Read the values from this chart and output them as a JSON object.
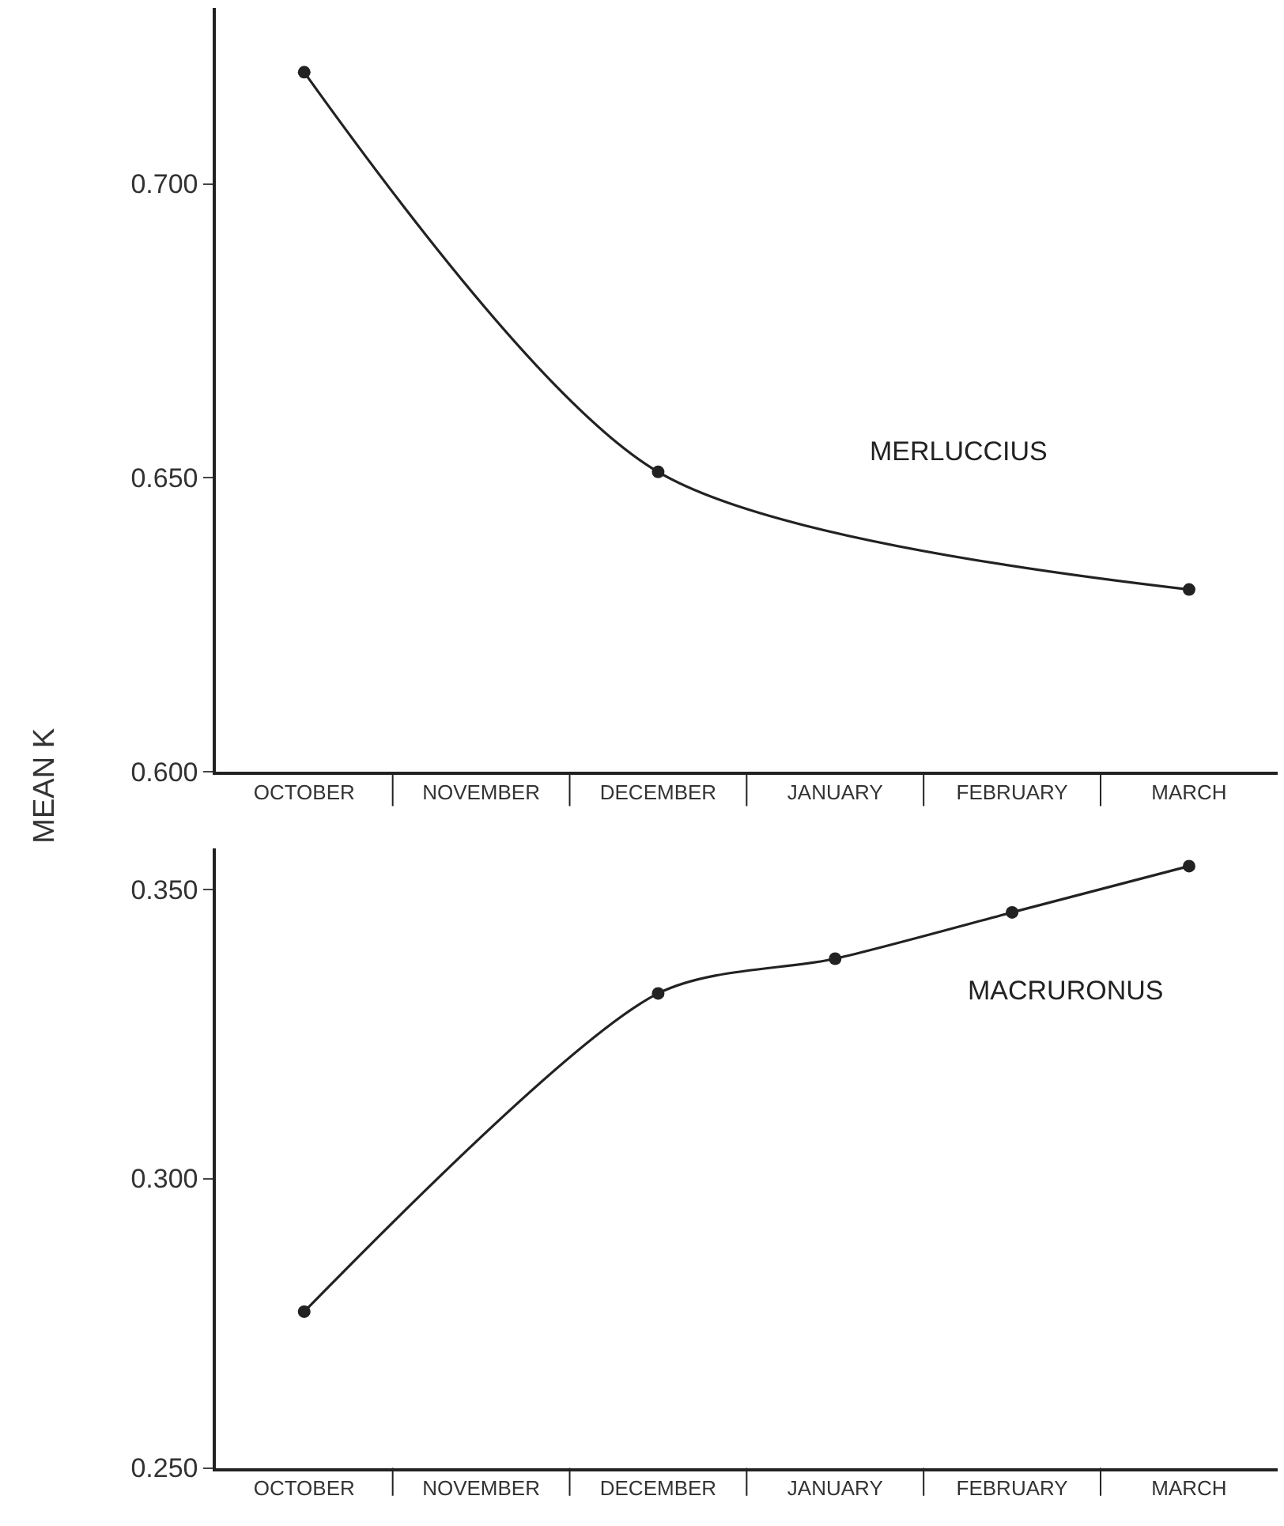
{
  "chart_data": [
    {
      "type": "line",
      "ylabel": "MEAN K",
      "marker": "circle",
      "line_style": "solid",
      "categories": [
        "OCTOBER",
        "NOVEMBER",
        "DECEMBER",
        "JANUARY",
        "FEBRUARY",
        "MARCH"
      ],
      "ylim": [
        0.6,
        0.73
      ],
      "yticks": [
        {
          "value": 0.6,
          "label": "0.600"
        },
        {
          "value": 0.65,
          "label": "0.650"
        },
        {
          "value": 0.7,
          "label": "0.700"
        }
      ],
      "series": [
        {
          "name": "MERLUCCIUS",
          "color": "#222222",
          "values": [
            0.719,
            null,
            0.651,
            null,
            null,
            0.631
          ]
        }
      ]
    },
    {
      "type": "line",
      "marker": "circle",
      "line_style": "solid",
      "categories": [
        "OCTOBER",
        "NOVEMBER",
        "DECEMBER",
        "JANUARY",
        "FEBRUARY",
        "MARCH"
      ],
      "ylim": [
        0.25,
        0.357
      ],
      "yticks": [
        {
          "value": 0.25,
          "label": "0.250"
        },
        {
          "value": 0.3,
          "label": "0.300"
        },
        {
          "value": 0.35,
          "label": "0.350"
        }
      ],
      "series": [
        {
          "name": "MACRURONUS",
          "color": "#222222",
          "values": [
            0.277,
            null,
            0.332,
            0.338,
            0.346,
            0.354
          ]
        }
      ]
    }
  ]
}
